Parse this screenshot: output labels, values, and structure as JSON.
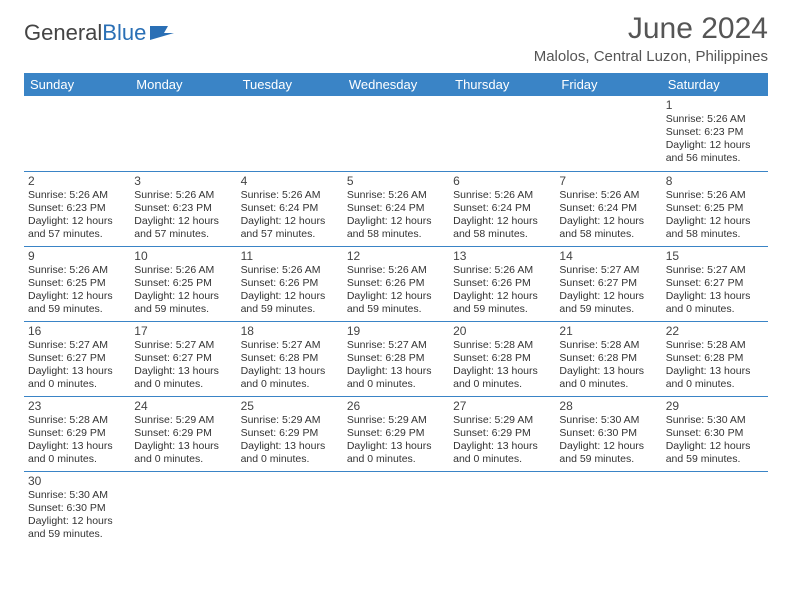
{
  "logo": {
    "part1": "General",
    "part2": "Blue"
  },
  "header": {
    "month_title": "June 2024",
    "location": "Malolos, Central Luzon, Philippines"
  },
  "colors": {
    "header_bg": "#3a84c6",
    "header_text": "#ffffff",
    "grid_line": "#3a84c6",
    "text": "#333333",
    "title_text": "#555555",
    "logo_blue": "#2a6fb5"
  },
  "typography": {
    "title_fontsize": 30,
    "location_fontsize": 15,
    "dayhead_fontsize": 13,
    "cell_fontsize": 10.5,
    "daynum_fontsize": 12
  },
  "calendar": {
    "type": "table",
    "columns": [
      "Sunday",
      "Monday",
      "Tuesday",
      "Wednesday",
      "Thursday",
      "Friday",
      "Saturday"
    ],
    "weeks": [
      [
        null,
        null,
        null,
        null,
        null,
        null,
        {
          "n": "1",
          "sr": "5:26 AM",
          "ss": "6:23 PM",
          "dh": "12",
          "dm": "56"
        }
      ],
      [
        {
          "n": "2",
          "sr": "5:26 AM",
          "ss": "6:23 PM",
          "dh": "12",
          "dm": "57"
        },
        {
          "n": "3",
          "sr": "5:26 AM",
          "ss": "6:23 PM",
          "dh": "12",
          "dm": "57"
        },
        {
          "n": "4",
          "sr": "5:26 AM",
          "ss": "6:24 PM",
          "dh": "12",
          "dm": "57"
        },
        {
          "n": "5",
          "sr": "5:26 AM",
          "ss": "6:24 PM",
          "dh": "12",
          "dm": "58"
        },
        {
          "n": "6",
          "sr": "5:26 AM",
          "ss": "6:24 PM",
          "dh": "12",
          "dm": "58"
        },
        {
          "n": "7",
          "sr": "5:26 AM",
          "ss": "6:24 PM",
          "dh": "12",
          "dm": "58"
        },
        {
          "n": "8",
          "sr": "5:26 AM",
          "ss": "6:25 PM",
          "dh": "12",
          "dm": "58"
        }
      ],
      [
        {
          "n": "9",
          "sr": "5:26 AM",
          "ss": "6:25 PM",
          "dh": "12",
          "dm": "59"
        },
        {
          "n": "10",
          "sr": "5:26 AM",
          "ss": "6:25 PM",
          "dh": "12",
          "dm": "59"
        },
        {
          "n": "11",
          "sr": "5:26 AM",
          "ss": "6:26 PM",
          "dh": "12",
          "dm": "59"
        },
        {
          "n": "12",
          "sr": "5:26 AM",
          "ss": "6:26 PM",
          "dh": "12",
          "dm": "59"
        },
        {
          "n": "13",
          "sr": "5:26 AM",
          "ss": "6:26 PM",
          "dh": "12",
          "dm": "59"
        },
        {
          "n": "14",
          "sr": "5:27 AM",
          "ss": "6:27 PM",
          "dh": "12",
          "dm": "59"
        },
        {
          "n": "15",
          "sr": "5:27 AM",
          "ss": "6:27 PM",
          "dh": "13",
          "dm": "0"
        }
      ],
      [
        {
          "n": "16",
          "sr": "5:27 AM",
          "ss": "6:27 PM",
          "dh": "13",
          "dm": "0"
        },
        {
          "n": "17",
          "sr": "5:27 AM",
          "ss": "6:27 PM",
          "dh": "13",
          "dm": "0"
        },
        {
          "n": "18",
          "sr": "5:27 AM",
          "ss": "6:28 PM",
          "dh": "13",
          "dm": "0"
        },
        {
          "n": "19",
          "sr": "5:27 AM",
          "ss": "6:28 PM",
          "dh": "13",
          "dm": "0"
        },
        {
          "n": "20",
          "sr": "5:28 AM",
          "ss": "6:28 PM",
          "dh": "13",
          "dm": "0"
        },
        {
          "n": "21",
          "sr": "5:28 AM",
          "ss": "6:28 PM",
          "dh": "13",
          "dm": "0"
        },
        {
          "n": "22",
          "sr": "5:28 AM",
          "ss": "6:28 PM",
          "dh": "13",
          "dm": "0"
        }
      ],
      [
        {
          "n": "23",
          "sr": "5:28 AM",
          "ss": "6:29 PM",
          "dh": "13",
          "dm": "0"
        },
        {
          "n": "24",
          "sr": "5:29 AM",
          "ss": "6:29 PM",
          "dh": "13",
          "dm": "0"
        },
        {
          "n": "25",
          "sr": "5:29 AM",
          "ss": "6:29 PM",
          "dh": "13",
          "dm": "0"
        },
        {
          "n": "26",
          "sr": "5:29 AM",
          "ss": "6:29 PM",
          "dh": "13",
          "dm": "0"
        },
        {
          "n": "27",
          "sr": "5:29 AM",
          "ss": "6:29 PM",
          "dh": "13",
          "dm": "0"
        },
        {
          "n": "28",
          "sr": "5:30 AM",
          "ss": "6:30 PM",
          "dh": "12",
          "dm": "59"
        },
        {
          "n": "29",
          "sr": "5:30 AM",
          "ss": "6:30 PM",
          "dh": "12",
          "dm": "59"
        }
      ],
      [
        {
          "n": "30",
          "sr": "5:30 AM",
          "ss": "6:30 PM",
          "dh": "12",
          "dm": "59"
        },
        null,
        null,
        null,
        null,
        null,
        null
      ]
    ],
    "labels": {
      "sunrise": "Sunrise:",
      "sunset": "Sunset:",
      "daylight_prefix": "Daylight:",
      "hours_word": "hours",
      "and_word": "and",
      "minutes_word": "minutes."
    }
  }
}
